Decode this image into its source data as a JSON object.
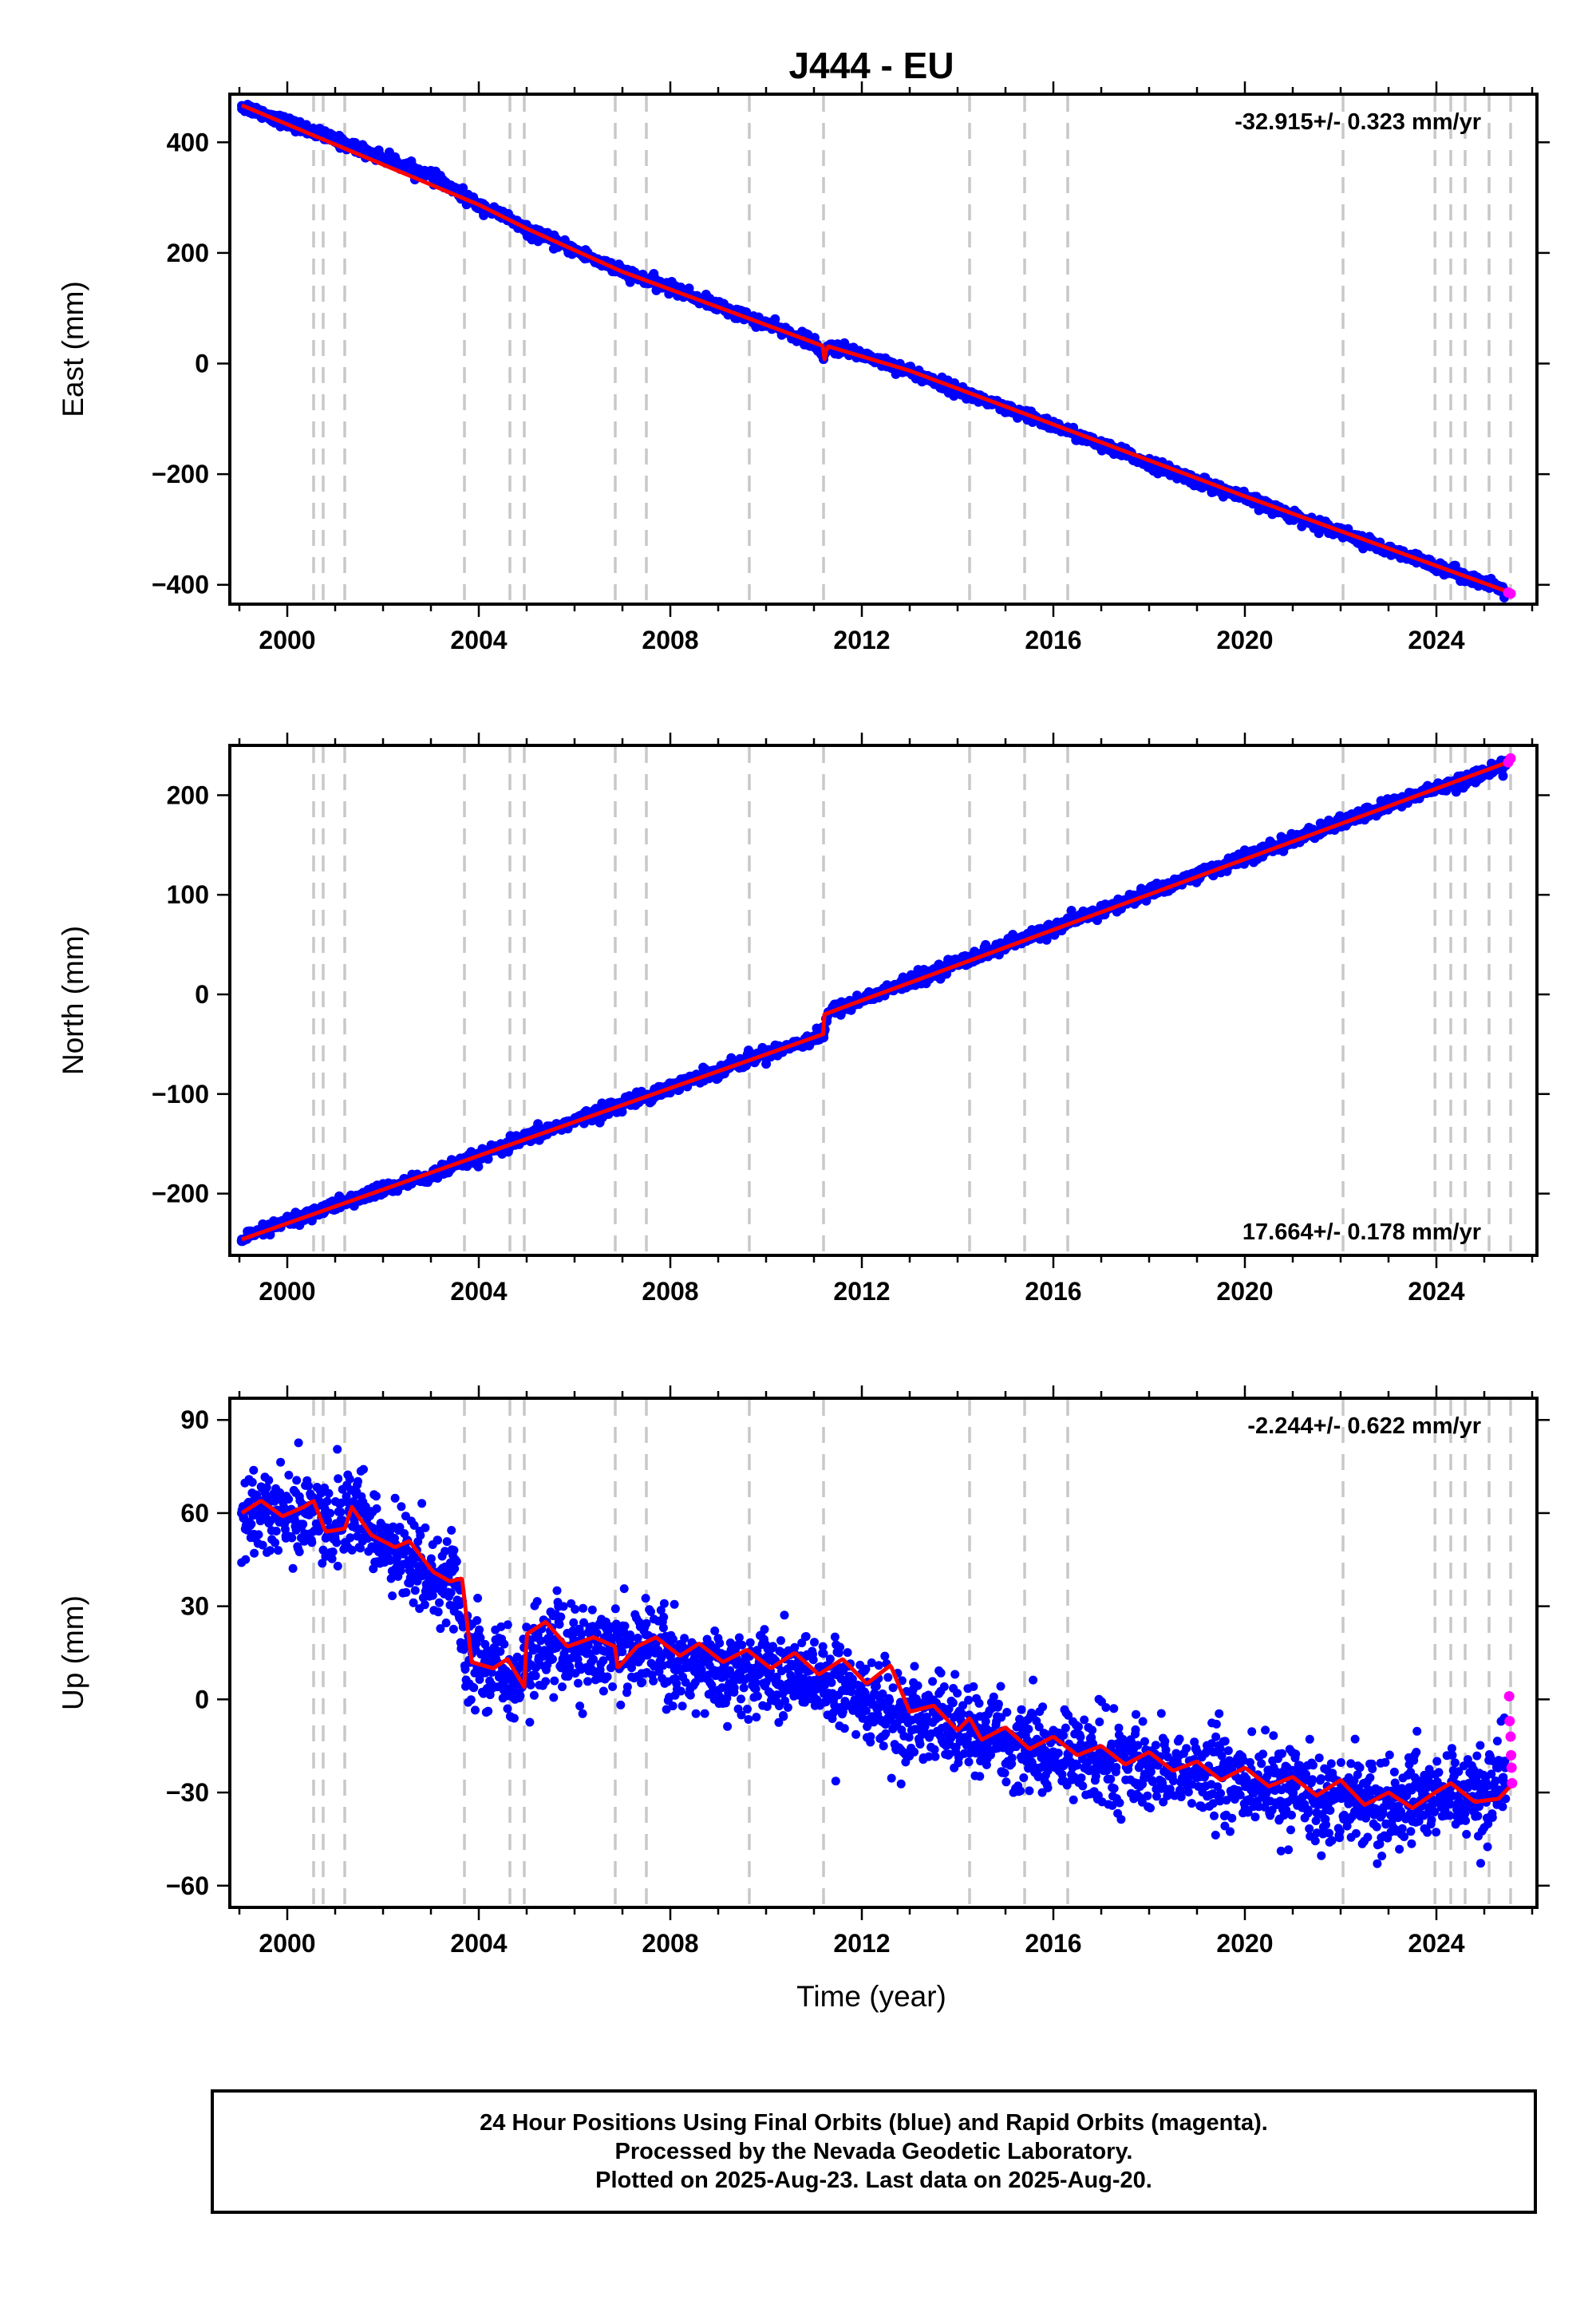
{
  "title": "J444 - EU",
  "colors": {
    "final_orbits": "#0000ff",
    "rapid_orbits": "#ff00ff",
    "model": "#ff0000",
    "event_lines": "#c8c8c8"
  },
  "xlabel": "Time (year)",
  "footer": {
    "line1": "24 Hour Positions Using Final Orbits (blue) and Rapid Orbits (magenta).",
    "line2": "Processed by the Nevada Geodetic Laboratory.",
    "line3": "Plotted on 2025-Aug-23. Last data on 2025-Aug-20."
  },
  "chart_data": [
    {
      "type": "scatter",
      "panel": "east",
      "ylabel": "East (mm)",
      "rate_label": "-32.915+/- 0.323 mm/yr",
      "xlim": [
        1998.8,
        2026.1
      ],
      "ylim": [
        -435,
        487
      ],
      "x_ticks": [
        2000,
        2004,
        2008,
        2012,
        2016,
        2020,
        2024
      ],
      "y_ticks": [
        -400,
        -200,
        0,
        200,
        400
      ],
      "y_tick_labels": [
        "−400",
        "−200",
        "0",
        "200",
        "400"
      ],
      "event_lines": [
        2000.55,
        2000.75,
        2001.2,
        2003.7,
        2004.65,
        2004.95,
        2006.85,
        2007.5,
        2009.65,
        2011.2,
        2014.25,
        2015.4,
        2016.3,
        2022.05,
        2023.97,
        2024.3,
        2024.6,
        2025.1,
        2025.55
      ],
      "series": [
        {
          "name": "Final Orbits",
          "points": [
            [
              1999.05,
              466
            ],
            [
              2000.0,
              436
            ],
            [
              2001.0,
              404
            ],
            [
              2002.0,
              372
            ],
            [
              2003.0,
              339
            ],
            [
              2004.0,
              286
            ],
            [
              2004.6,
              264
            ],
            [
              2005.0,
              240
            ],
            [
              2006.0,
              205
            ],
            [
              2007.0,
              166
            ],
            [
              2008.0,
              137
            ],
            [
              2009.0,
              104
            ],
            [
              2010.0,
              71
            ],
            [
              2011.0,
              38
            ],
            [
              2011.2,
              8
            ],
            [
              2011.3,
              31
            ],
            [
              2012.0,
              17
            ],
            [
              2013.0,
              -14
            ],
            [
              2014.0,
              -48
            ],
            [
              2015.0,
              -82
            ],
            [
              2016.0,
              -111
            ],
            [
              2017.0,
              -148
            ],
            [
              2018.0,
              -180
            ],
            [
              2019.0,
              -212
            ],
            [
              2020.0,
              -243
            ],
            [
              2021.0,
              -275
            ],
            [
              2022.0,
              -303
            ],
            [
              2023.0,
              -339
            ],
            [
              2024.0,
              -365
            ],
            [
              2025.0,
              -398
            ],
            [
              2025.45,
              -412
            ]
          ]
        },
        {
          "name": "Rapid Orbits",
          "points": [
            [
              2025.5,
              -414
            ],
            [
              2025.55,
              -416
            ]
          ]
        }
      ],
      "model": [
        [
          1999.05,
          467
        ],
        [
          2004.0,
          287
        ],
        [
          2005.0,
          244
        ],
        [
          2007.0,
          166
        ],
        [
          2009.0,
          102
        ],
        [
          2011.18,
          32
        ],
        [
          2011.22,
          8
        ],
        [
          2011.25,
          22
        ],
        [
          2011.3,
          31
        ],
        [
          2013.0,
          -13
        ],
        [
          2016.0,
          -110
        ],
        [
          2020.0,
          -240
        ],
        [
          2025.6,
          -416
        ]
      ]
    },
    {
      "type": "scatter",
      "panel": "north",
      "ylabel": "North (mm)",
      "rate_label": "17.664+/- 0.178 mm/yr",
      "xlim": [
        1998.8,
        2026.1
      ],
      "ylim": [
        -262,
        250
      ],
      "x_ticks": [
        2000,
        2004,
        2008,
        2012,
        2016,
        2020,
        2024
      ],
      "y_ticks": [
        -200,
        -100,
        0,
        100,
        200
      ],
      "y_tick_labels": [
        "−200",
        "−100",
        "0",
        "100",
        "200"
      ],
      "event_lines": [
        2000.55,
        2000.75,
        2001.2,
        2003.7,
        2004.65,
        2004.95,
        2006.85,
        2007.5,
        2009.65,
        2011.2,
        2014.25,
        2015.4,
        2016.3,
        2022.05,
        2023.97,
        2024.3,
        2024.6,
        2025.1,
        2025.55
      ],
      "series": [
        {
          "name": "Final Orbits",
          "points": [
            [
              1999.05,
              -246
            ],
            [
              2000.0,
              -228
            ],
            [
              2001.0,
              -212
            ],
            [
              2002.0,
              -196
            ],
            [
              2003.0,
              -182
            ],
            [
              2004.0,
              -163
            ],
            [
              2005.0,
              -144
            ],
            [
              2006.0,
              -127
            ],
            [
              2007.0,
              -110
            ],
            [
              2008.0,
              -93
            ],
            [
              2009.0,
              -76
            ],
            [
              2010.0,
              -59
            ],
            [
              2011.0,
              -44
            ],
            [
              2011.2,
              -40
            ],
            [
              2011.3,
              -18
            ],
            [
              2012.0,
              -5
            ],
            [
              2013.0,
              13
            ],
            [
              2014.0,
              32
            ],
            [
              2015.0,
              49
            ],
            [
              2016.0,
              66
            ],
            [
              2017.0,
              84
            ],
            [
              2018.0,
              102
            ],
            [
              2019.0,
              120
            ],
            [
              2020.0,
              137
            ],
            [
              2021.0,
              155
            ],
            [
              2022.0,
              172
            ],
            [
              2023.0,
              190
            ],
            [
              2024.0,
              207
            ],
            [
              2025.0,
              222
            ],
            [
              2025.45,
              230
            ]
          ]
        },
        {
          "name": "Rapid Orbits",
          "points": [
            [
              2025.5,
              233
            ],
            [
              2025.55,
              237
            ]
          ]
        }
      ],
      "model": [
        [
          1999.05,
          -246
        ],
        [
          2011.19,
          -40
        ],
        [
          2011.22,
          -20
        ],
        [
          2012.0,
          -6
        ],
        [
          2025.6,
          235
        ]
      ]
    },
    {
      "type": "scatter",
      "panel": "up",
      "ylabel": "Up (mm)",
      "rate_label": "-2.244+/- 0.622 mm/yr",
      "xlim": [
        1998.8,
        2026.1
      ],
      "ylim": [
        -67,
        97
      ],
      "x_ticks": [
        2000,
        2004,
        2008,
        2012,
        2016,
        2020,
        2024
      ],
      "y_ticks": [
        -60,
        -30,
        0,
        30,
        60,
        90
      ],
      "y_tick_labels": [
        "−60",
        "−30",
        "0",
        "30",
        "60",
        "90"
      ],
      "event_lines": [
        2000.55,
        2000.75,
        2001.2,
        2003.7,
        2004.65,
        2004.95,
        2006.85,
        2007.5,
        2009.65,
        2011.2,
        2014.25,
        2015.4,
        2016.3,
        2022.05,
        2023.97,
        2024.3,
        2024.6,
        2025.1,
        2025.55
      ],
      "series": [
        {
          "name": "Final Orbits",
          "points": [
            [
              1999.05,
              60
            ],
            [
              1999.5,
              64
            ],
            [
              2000.0,
              58
            ],
            [
              2000.6,
              62
            ],
            [
              2001.0,
              55
            ],
            [
              2001.5,
              60
            ],
            [
              2002.0,
              50
            ],
            [
              2002.5,
              48
            ],
            [
              2003.0,
              40
            ],
            [
              2003.5,
              37
            ],
            [
              2003.8,
              12
            ],
            [
              2004.5,
              10
            ],
            [
              2004.9,
              4
            ],
            [
              2005.5,
              22
            ],
            [
              2006.0,
              14
            ],
            [
              2006.8,
              16
            ],
            [
              2007.5,
              17
            ],
            [
              2008.0,
              14
            ],
            [
              2009.0,
              9
            ],
            [
              2010.0,
              10
            ],
            [
              2011.0,
              6
            ],
            [
              2012.0,
              2
            ],
            [
              2012.7,
              -8
            ],
            [
              2013.5,
              -4
            ],
            [
              2014.3,
              -10
            ],
            [
              2015.0,
              -14
            ],
            [
              2016.0,
              -17
            ],
            [
              2017.0,
              -20
            ],
            [
              2018.0,
              -22
            ],
            [
              2019.0,
              -24
            ],
            [
              2020.0,
              -27
            ],
            [
              2021.0,
              -30
            ],
            [
              2022.0,
              -31
            ],
            [
              2023.0,
              -34
            ],
            [
              2024.0,
              -33
            ],
            [
              2025.0,
              -31
            ],
            [
              2025.45,
              -28
            ]
          ]
        },
        {
          "name": "Rapid Orbits",
          "points": [
            [
              2025.52,
              1
            ],
            [
              2025.53,
              -7
            ],
            [
              2025.55,
              -12
            ],
            [
              2025.56,
              -18
            ],
            [
              2025.57,
              -22
            ],
            [
              2025.58,
              -27
            ]
          ]
        }
      ],
      "model_points": [
        [
          1999.05,
          60
        ],
        [
          1999.45,
          64
        ],
        [
          1999.9,
          59
        ],
        [
          2000.35,
          62
        ],
        [
          2000.55,
          64
        ],
        [
          2000.8,
          54
        ],
        [
          2001.2,
          55
        ],
        [
          2001.35,
          62
        ],
        [
          2001.75,
          53
        ],
        [
          2002.25,
          49
        ],
        [
          2002.55,
          51
        ],
        [
          2003.05,
          41
        ],
        [
          2003.4,
          38
        ],
        [
          2003.65,
          39
        ],
        [
          2003.85,
          12
        ],
        [
          2004.3,
          10
        ],
        [
          2004.6,
          13
        ],
        [
          2004.95,
          4
        ],
        [
          2005.0,
          21
        ],
        [
          2005.4,
          25
        ],
        [
          2005.85,
          17
        ],
        [
          2006.4,
          20
        ],
        [
          2006.85,
          17
        ],
        [
          2006.9,
          10
        ],
        [
          2007.3,
          17
        ],
        [
          2007.7,
          20
        ],
        [
          2008.2,
          14
        ],
        [
          2008.6,
          18
        ],
        [
          2009.1,
          12
        ],
        [
          2009.6,
          16
        ],
        [
          2010.1,
          10
        ],
        [
          2010.6,
          15
        ],
        [
          2011.1,
          8
        ],
        [
          2011.6,
          13
        ],
        [
          2012.1,
          5
        ],
        [
          2012.6,
          11
        ],
        [
          2013.0,
          -4
        ],
        [
          2013.5,
          -2
        ],
        [
          2014.0,
          -10
        ],
        [
          2014.25,
          -6
        ],
        [
          2014.5,
          -13
        ],
        [
          2015.0,
          -9
        ],
        [
          2015.5,
          -16
        ],
        [
          2016.0,
          -12
        ],
        [
          2016.5,
          -18
        ],
        [
          2017.0,
          -15
        ],
        [
          2017.5,
          -21
        ],
        [
          2018.0,
          -17
        ],
        [
          2018.5,
          -23
        ],
        [
          2019.0,
          -20
        ],
        [
          2019.5,
          -26
        ],
        [
          2020.0,
          -22
        ],
        [
          2020.5,
          -28
        ],
        [
          2021.0,
          -25
        ],
        [
          2021.5,
          -31
        ],
        [
          2022.0,
          -26
        ],
        [
          2022.5,
          -34
        ],
        [
          2023.0,
          -30
        ],
        [
          2023.5,
          -35
        ],
        [
          2023.97,
          -30
        ],
        [
          2024.3,
          -27
        ],
        [
          2024.8,
          -33
        ],
        [
          2025.3,
          -32
        ],
        [
          2025.6,
          -27
        ]
      ]
    }
  ]
}
